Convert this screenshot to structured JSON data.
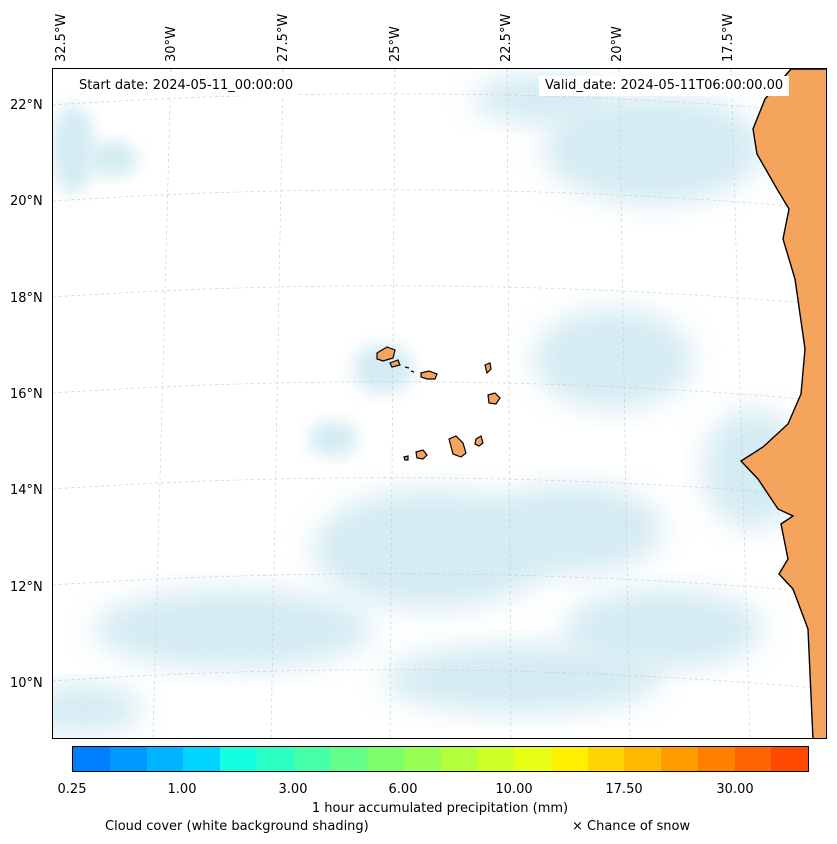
{
  "map": {
    "start_date": "Start date: 2024-05-11_00:00:00",
    "valid_date": "Valid_date: 2024-05-11T06:00:00.00",
    "lon_labels": [
      "32.5°W",
      "30°W",
      "27.5°W",
      "25°W",
      "22.5°W",
      "20°W",
      "17.5°W"
    ],
    "lat_labels": [
      "22°N",
      "20°N",
      "18°N",
      "16°N",
      "14°N",
      "12°N",
      "10°N"
    ],
    "colors": {
      "cloud": "#a9d8e6",
      "land": "#f5a45e",
      "coast": "#000000"
    }
  },
  "colorbar": {
    "title": "1 hour accumulated precipitation (mm)",
    "tick_labels": [
      "0.25",
      "1.00",
      "3.00",
      "6.00",
      "10.00",
      "17.50",
      "30.00"
    ],
    "colors": [
      "#0080ff",
      "#0099ff",
      "#00b4ff",
      "#00d4ff",
      "#14ffe0",
      "#2bffc4",
      "#45ffa8",
      "#64ff8a",
      "#7dff6c",
      "#98ff54",
      "#b4ff3c",
      "#ccff24",
      "#e6ff14",
      "#fff000",
      "#ffd400",
      "#ffb800",
      "#ff9c00",
      "#ff8000",
      "#ff6400",
      "#ff4800"
    ]
  },
  "legend": {
    "cloud_note": "Cloud cover (white background shading)",
    "snow_note": "× Chance of snow"
  }
}
